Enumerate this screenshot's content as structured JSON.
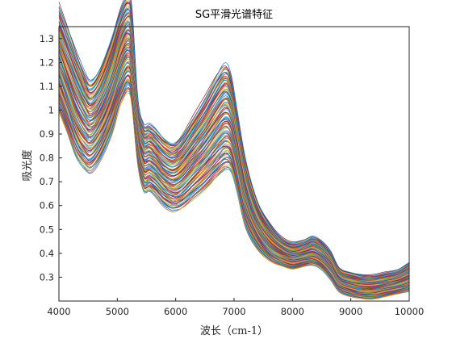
{
  "chart_data": {
    "type": "line",
    "title": "SG平滑光谱特征",
    "xlabel": "波长（cm-1）",
    "ylabel": "吸光度",
    "xlim": [
      4000,
      10000
    ],
    "ylim": [
      0.2,
      1.35
    ],
    "xticks": [
      4000,
      5000,
      6000,
      7000,
      8000,
      9000,
      10000
    ],
    "yticks": [
      0.3,
      0.4,
      0.5,
      0.6,
      0.7,
      0.8,
      0.9,
      1,
      1.1,
      1.2,
      1.3
    ],
    "grid": false,
    "legend": "none",
    "series_count": 120,
    "colors": [
      "#0072BD",
      "#D95319",
      "#EDB120",
      "#7E2F8E",
      "#77AC30",
      "#4DBEEE",
      "#A2142F"
    ],
    "x": [
      4000,
      4150,
      4300,
      4450,
      4550,
      4700,
      4900,
      5050,
      5180,
      5250,
      5350,
      5450,
      5550,
      5650,
      5800,
      5950,
      6100,
      6300,
      6500,
      6700,
      6850,
      6950,
      7050,
      7200,
      7400,
      7600,
      7800,
      8000,
      8200,
      8350,
      8500,
      8650,
      8800,
      9000,
      9200,
      9400,
      9600,
      9800,
      10000
    ],
    "mean_spectrum": [
      1.22,
      1.12,
      1.02,
      0.95,
      0.93,
      0.98,
      1.1,
      1.22,
      1.28,
      1.22,
      0.91,
      0.8,
      0.8,
      0.78,
      0.74,
      0.72,
      0.74,
      0.8,
      0.86,
      0.93,
      0.97,
      0.94,
      0.83,
      0.65,
      0.52,
      0.45,
      0.41,
      0.39,
      0.4,
      0.41,
      0.39,
      0.35,
      0.29,
      0.27,
      0.26,
      0.26,
      0.27,
      0.28,
      0.3
    ],
    "spread": [
      0.22,
      0.22,
      0.22,
      0.2,
      0.19,
      0.19,
      0.2,
      0.2,
      0.2,
      0.2,
      0.14,
      0.14,
      0.14,
      0.14,
      0.14,
      0.14,
      0.15,
      0.17,
      0.19,
      0.21,
      0.22,
      0.2,
      0.17,
      0.14,
      0.1,
      0.08,
      0.06,
      0.055,
      0.055,
      0.06,
      0.06,
      0.06,
      0.05,
      0.05,
      0.05,
      0.05,
      0.05,
      0.05,
      0.06
    ]
  }
}
